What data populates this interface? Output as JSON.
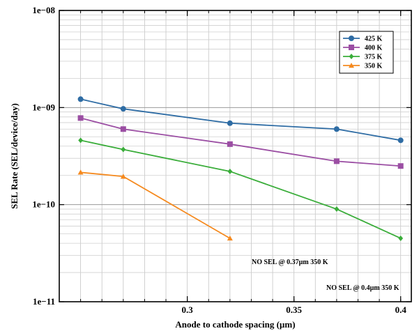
{
  "chart_data": {
    "type": "line",
    "xlabel": "Anode to cathode spacing (µm)",
    "ylabel": "SEL Rate (SEL/device/day)",
    "x_scale": "linear",
    "y_scale": "log",
    "xlim": [
      0.24,
      0.405
    ],
    "ylim": [
      1e-11,
      1e-08
    ],
    "x_ticks": [
      0.3,
      0.35,
      0.4
    ],
    "x_tick_labels": [
      "0.3",
      "0.35",
      "0.4"
    ],
    "y_ticks": [
      1e-11,
      1e-10,
      1e-09,
      1e-08
    ],
    "y_tick_labels": [
      "1e−11",
      "1e−10",
      "1e−09",
      "1e−08"
    ],
    "grid": true,
    "legend_position": "top-right",
    "series": [
      {
        "name": "425 K",
        "color": "#2e6ca4",
        "marker": "circle",
        "x": [
          0.25,
          0.27,
          0.32,
          0.37,
          0.4
        ],
        "y": [
          1.22e-09,
          9.7e-10,
          6.9e-10,
          6e-10,
          4.6e-10
        ]
      },
      {
        "name": "400 K",
        "color": "#9b4ea3",
        "marker": "square",
        "x": [
          0.25,
          0.27,
          0.32,
          0.37,
          0.4
        ],
        "y": [
          7.8e-10,
          6e-10,
          4.2e-10,
          2.8e-10,
          2.5e-10
        ]
      },
      {
        "name": "375 K",
        "color": "#3aad3a",
        "marker": "diamond",
        "x": [
          0.25,
          0.27,
          0.32,
          0.37,
          0.4
        ],
        "y": [
          4.6e-10,
          3.7e-10,
          2.2e-10,
          9e-11,
          4.5e-11
        ]
      },
      {
        "name": "350 K",
        "color": "#f58a1f",
        "marker": "triangle",
        "x": [
          0.25,
          0.27,
          0.32
        ],
        "y": [
          2.15e-10,
          1.95e-10,
          4.5e-11
        ]
      }
    ],
    "annotations": [
      {
        "text": "NO SEL @ 0.37µm 350 K"
      },
      {
        "text": "NO SEL @ 0.4µm 350 K"
      }
    ]
  }
}
